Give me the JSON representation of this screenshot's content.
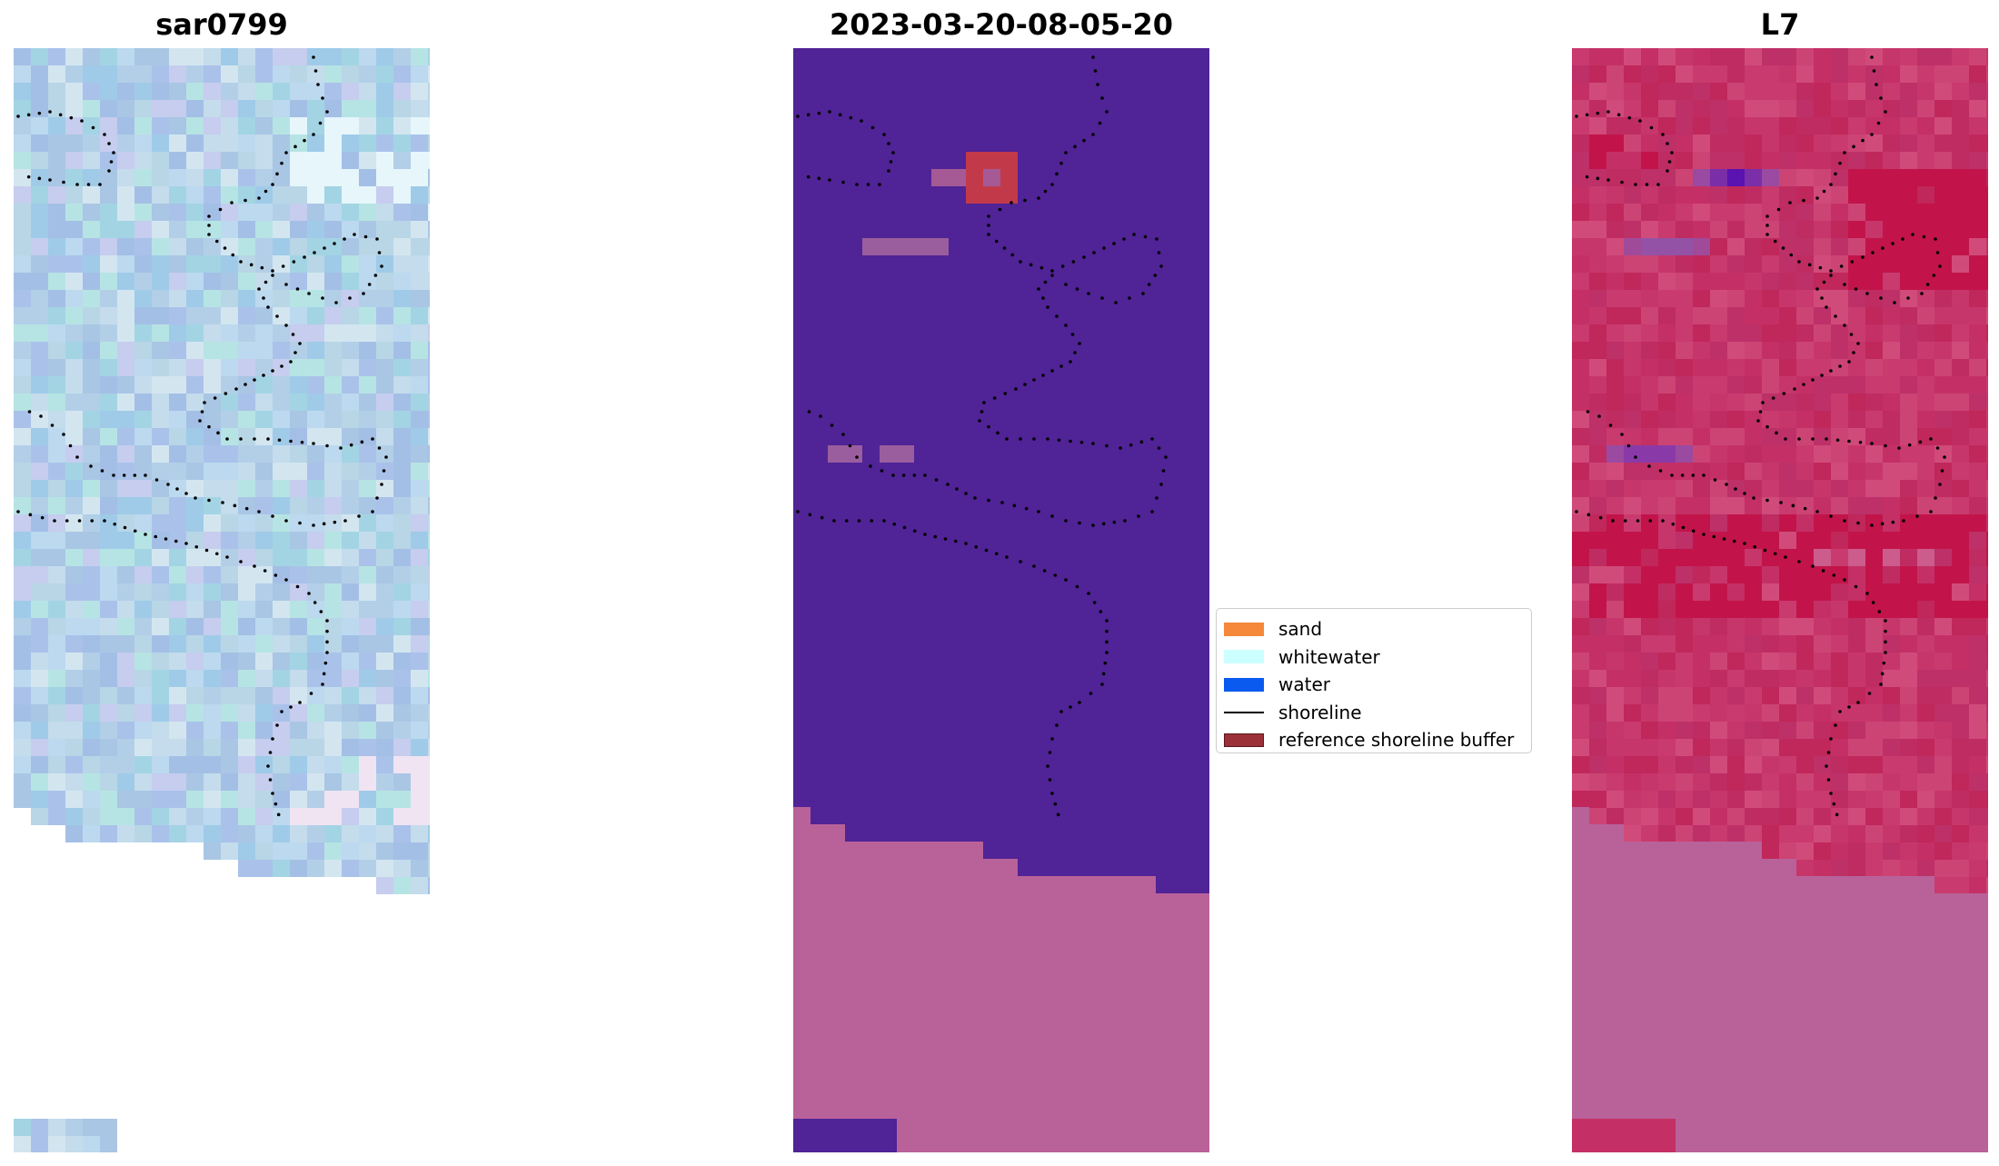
{
  "panels": [
    {
      "title": "sar0799",
      "kind": "rgb"
    },
    {
      "title": "2023-03-20-08-05-20",
      "kind": "classified"
    },
    {
      "title": "L7",
      "kind": "index"
    }
  ],
  "legend": {
    "items": [
      {
        "label": "sand",
        "color": "#f5883b",
        "type": "patch"
      },
      {
        "label": "whitewater",
        "color": "#ccffff",
        "type": "patch"
      },
      {
        "label": "water",
        "color": "#0a5af0",
        "type": "patch"
      },
      {
        "label": "shoreline",
        "color": "#000000",
        "type": "line"
      },
      {
        "label": "reference shoreline buffer",
        "color": "#9b3038",
        "type": "patch"
      }
    ]
  },
  "colors": {
    "classified_background": "#502396",
    "nodata_overlay": "#b9629a",
    "buffer_overlay": "#c23a4a",
    "index_base": "#c43066",
    "shoreline_dots": "#000000"
  }
}
